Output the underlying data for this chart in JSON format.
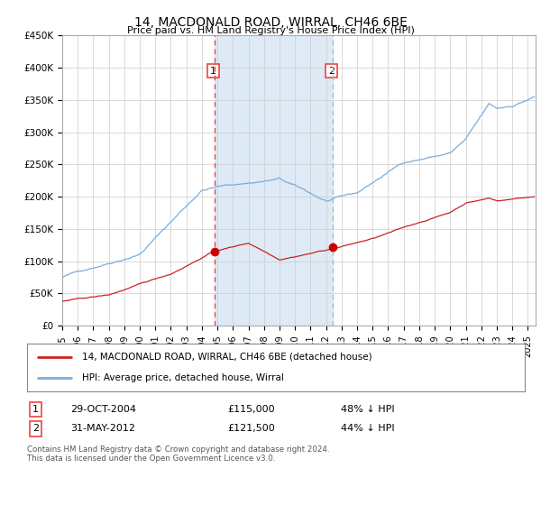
{
  "title": "14, MACDONALD ROAD, WIRRAL, CH46 6BE",
  "subtitle": "Price paid vs. HM Land Registry's House Price Index (HPI)",
  "ylabel_ticks": [
    "£0",
    "£50K",
    "£100K",
    "£150K",
    "£200K",
    "£250K",
    "£300K",
    "£350K",
    "£400K",
    "£450K"
  ],
  "ylim": [
    0,
    450000
  ],
  "xlim_start": 1995.0,
  "xlim_end": 2025.5,
  "background_color": "#ffffff",
  "plot_bg_color": "#ffffff",
  "highlight_color": "#deeaf5",
  "grid_color": "#cccccc",
  "transaction1_x": 2004.83,
  "transaction2_x": 2012.42,
  "transaction1_price": 115000,
  "transaction2_price": 121500,
  "legend_line1": "14, MACDONALD ROAD, WIRRAL, CH46 6BE (detached house)",
  "legend_line2": "HPI: Average price, detached house, Wirral",
  "footer": "Contains HM Land Registry data © Crown copyright and database right 2024.\nThis data is licensed under the Open Government Licence v3.0.",
  "red_line_color": "#cc2222",
  "blue_line_color": "#7aaddb",
  "vline1_color": "#ee4444",
  "vline2_color": "#aabbcc",
  "marker_color": "#cc0000"
}
